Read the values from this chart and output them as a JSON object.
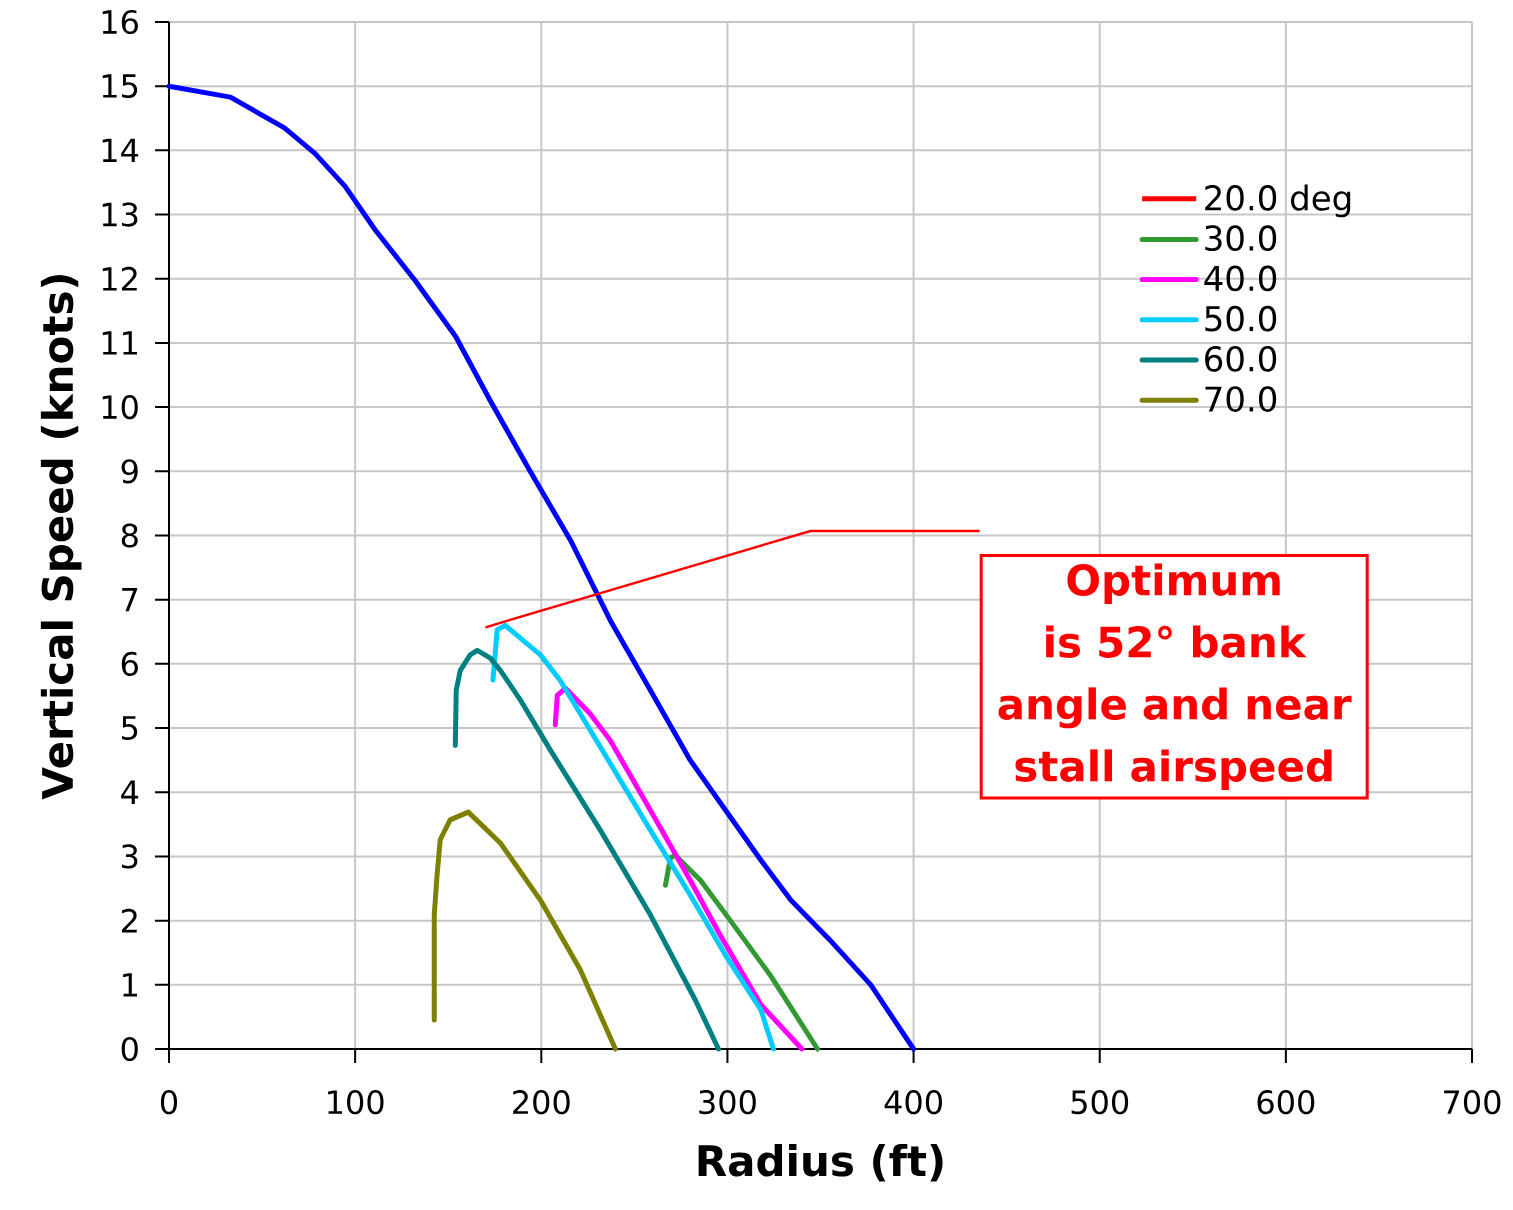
{
  "chart_data": {
    "type": "line",
    "xlabel": "Radius (ft)",
    "ylabel": "Vertical Speed (knots)",
    "xlim": [
      0,
      700
    ],
    "ylim": [
      0,
      16
    ],
    "xticks": [
      0,
      100,
      200,
      300,
      400,
      500,
      600,
      700
    ],
    "yticks": [
      0,
      1,
      2,
      3,
      4,
      5,
      6,
      7,
      8,
      9,
      10,
      11,
      12,
      13,
      14,
      15,
      16
    ],
    "grid": true,
    "legend": "top right",
    "line_style": "solid",
    "annotations": [
      "Optimum is 52° bank angle and near stall airspeed"
    ],
    "series": [
      {
        "color": "#0000ff",
        "x": [
          0,
          33,
          62,
          78.5,
          94.6,
          110.8,
          132,
          154,
          172.6,
          194,
          215.6,
          237,
          258.6,
          280,
          299,
          318,
          334,
          355,
          377,
          400
        ],
        "values": [
          15.0,
          14.83,
          14.35,
          13.95,
          13.44,
          12.76,
          11.98,
          11.1,
          10.1,
          9.0,
          7.93,
          6.68,
          5.59,
          4.5,
          3.72,
          2.94,
          2.32,
          1.7,
          1.0,
          0
        ]
      },
      {
        "name": "20.0 deg",
        "color": "#ff0000",
        "values": [
          null
        ]
      },
      {
        "name": "30.0",
        "color": "#339933",
        "x": [
          266.7,
          269.4,
          272,
          285.5,
          301.6,
          323,
          348.4
        ],
        "values": [
          2.55,
          2.98,
          3.02,
          2.63,
          2.0,
          1.15,
          0
        ]
      },
      {
        "name": "40.0",
        "color": "#ff00ff",
        "x": [
          207.5,
          208.6,
          213,
          226,
          237,
          258.6,
          280,
          296,
          318,
          340
        ],
        "values": [
          5.05,
          5.51,
          5.62,
          5.23,
          4.81,
          3.72,
          2.63,
          1.78,
          0.69,
          0
        ]
      },
      {
        "name": "50.0",
        "color": "#00ccff",
        "x": [
          174,
          176.3,
          180.6,
          199.5,
          210,
          231,
          258.6,
          280,
          299,
          318,
          324.7
        ],
        "values": [
          5.75,
          6.53,
          6.6,
          6.14,
          5.75,
          4.74,
          3.41,
          2.4,
          1.46,
          0.61,
          0
        ]
      },
      {
        "name": "60.0",
        "color": "#008080",
        "x": [
          153.8,
          154.3,
          156.5,
          161.8,
          165.6,
          172.6,
          178,
          188.7,
          204.8,
          231.7,
          258.6,
          282.8,
          295.2
        ],
        "values": [
          4.73,
          5.59,
          5.9,
          6.14,
          6.21,
          6.09,
          5.9,
          5.44,
          4.66,
          3.41,
          2.09,
          0.76,
          0
        ]
      },
      {
        "name": "70.0",
        "color": "#808000",
        "x": [
          142.5,
          142.5,
          144,
          145.7,
          151,
          160.8,
          178,
          199.5,
          221,
          239.8
        ],
        "values": [
          0.45,
          2.09,
          2.71,
          3.26,
          3.57,
          3.69,
          3.21,
          2.32,
          1.23,
          0
        ]
      }
    ]
  }
}
